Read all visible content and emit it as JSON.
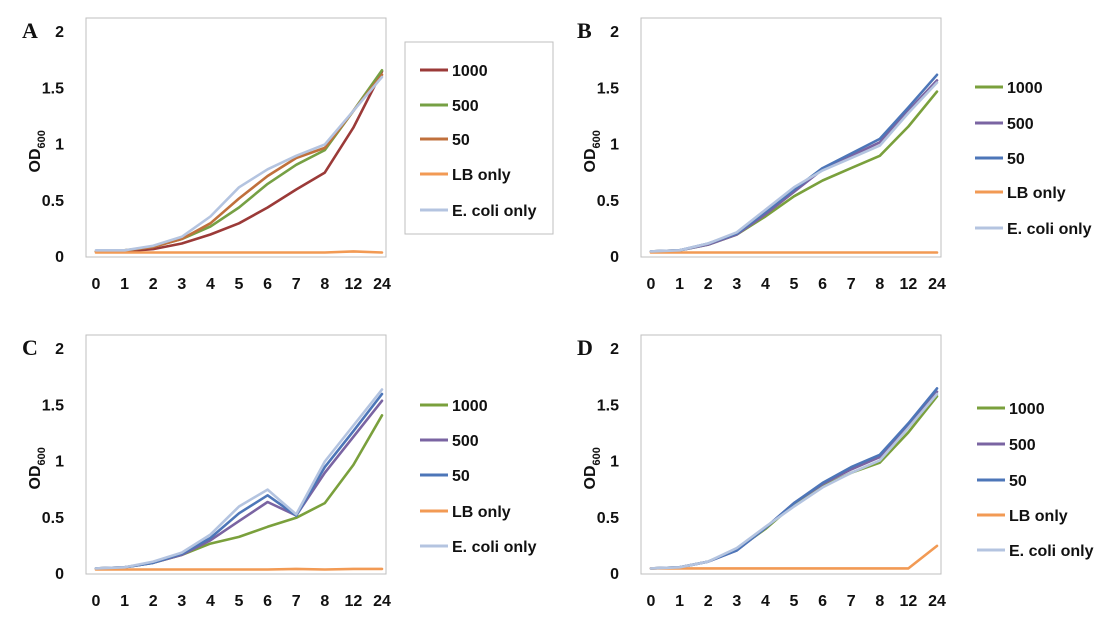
{
  "colors": {
    "1000": "#7aa03c",
    "1000_A": "#9b3a38",
    "500": "#7a64a2",
    "500_A": "#76a044",
    "50": "#4d76b8",
    "50_A": "#c0703c",
    "LB only": "#f29a54",
    "E. coli only": "#b4c4e0",
    "gridline": "#d9d9d9",
    "axis": "#bfbfbf"
  },
  "chart_data": [
    {
      "panel": "A",
      "type": "line",
      "ylabel": "OD600",
      "ylabel_main": "OD",
      "ylabel_sub": "600",
      "categories": [
        "0",
        "1",
        "2",
        "3",
        "4",
        "5",
        "6",
        "7",
        "8",
        "12",
        "24"
      ],
      "yticks": [
        "0",
        "0.5",
        "1",
        "1.5",
        "2"
      ],
      "ylim": [
        0,
        2
      ],
      "grid": false,
      "legend_position": "right",
      "series": [
        {
          "name": "1000",
          "color_key": "1000_A",
          "values": [
            0.05,
            0.05,
            0.07,
            0.12,
            0.2,
            0.3,
            0.44,
            0.6,
            0.75,
            1.15,
            1.65
          ]
        },
        {
          "name": "500",
          "color_key": "500_A",
          "values": [
            0.05,
            0.06,
            0.09,
            0.16,
            0.27,
            0.44,
            0.65,
            0.82,
            0.95,
            1.3,
            1.66
          ]
        },
        {
          "name": "50",
          "color_key": "50_A",
          "values": [
            0.05,
            0.06,
            0.09,
            0.16,
            0.3,
            0.52,
            0.72,
            0.88,
            0.97,
            1.3,
            1.62
          ]
        },
        {
          "name": "LB only",
          "color_key": "LB only",
          "values": [
            0.04,
            0.04,
            0.04,
            0.04,
            0.04,
            0.04,
            0.04,
            0.04,
            0.04,
            0.05,
            0.04
          ]
        },
        {
          "name": "E. coli only",
          "color_key": "E. coli only",
          "values": [
            0.06,
            0.06,
            0.1,
            0.18,
            0.36,
            0.62,
            0.78,
            0.9,
            1.0,
            1.3,
            1.6
          ]
        }
      ]
    },
    {
      "panel": "B",
      "type": "line",
      "ylabel": "OD600",
      "ylabel_main": "OD",
      "ylabel_sub": "600",
      "categories": [
        "0",
        "1",
        "2",
        "3",
        "4",
        "5",
        "6",
        "7",
        "8",
        "12",
        "24"
      ],
      "yticks": [
        "0",
        "0.5",
        "1",
        "1.5",
        "2"
      ],
      "ylim": [
        0,
        2
      ],
      "grid": false,
      "legend_position": "right",
      "series": [
        {
          "name": "1000",
          "color_key": "1000",
          "values": [
            0.05,
            0.06,
            0.11,
            0.2,
            0.36,
            0.54,
            0.68,
            0.79,
            0.9,
            1.16,
            1.47
          ]
        },
        {
          "name": "500",
          "color_key": "500",
          "values": [
            0.05,
            0.06,
            0.11,
            0.2,
            0.38,
            0.58,
            0.78,
            0.9,
            1.02,
            1.3,
            1.57
          ]
        },
        {
          "name": "50",
          "color_key": "50",
          "values": [
            0.05,
            0.06,
            0.12,
            0.21,
            0.4,
            0.6,
            0.79,
            0.92,
            1.05,
            1.33,
            1.62
          ]
        },
        {
          "name": "LB only",
          "color_key": "LB only",
          "values": [
            0.04,
            0.04,
            0.04,
            0.04,
            0.04,
            0.04,
            0.04,
            0.04,
            0.04,
            0.04,
            0.04
          ]
        },
        {
          "name": "E. coli only",
          "color_key": "E. coli only",
          "values": [
            0.05,
            0.06,
            0.12,
            0.22,
            0.42,
            0.62,
            0.77,
            0.88,
            0.99,
            1.28,
            1.55
          ]
        }
      ]
    },
    {
      "panel": "C",
      "type": "line",
      "ylabel": "OD600",
      "ylabel_main": "OD",
      "ylabel_sub": "600",
      "categories": [
        "0",
        "1",
        "2",
        "3",
        "4",
        "5",
        "6",
        "7",
        "8",
        "12",
        "24"
      ],
      "yticks": [
        "0",
        "0.5",
        "1",
        "1.5",
        "2"
      ],
      "ylim": [
        0,
        2
      ],
      "grid": false,
      "legend_position": "right",
      "series": [
        {
          "name": "1000",
          "color_key": "1000",
          "values": [
            0.05,
            0.06,
            0.1,
            0.17,
            0.27,
            0.33,
            0.42,
            0.5,
            0.63,
            0.97,
            1.41
          ]
        },
        {
          "name": "500",
          "color_key": "500",
          "values": [
            0.05,
            0.06,
            0.1,
            0.17,
            0.3,
            0.47,
            0.64,
            0.52,
            0.9,
            1.22,
            1.54
          ]
        },
        {
          "name": "50",
          "color_key": "50",
          "values": [
            0.05,
            0.06,
            0.1,
            0.18,
            0.32,
            0.54,
            0.7,
            0.52,
            0.95,
            1.27,
            1.6
          ]
        },
        {
          "name": "LB only",
          "color_key": "LB only",
          "values": [
            0.04,
            0.04,
            0.04,
            0.04,
            0.04,
            0.04,
            0.04,
            0.045,
            0.04,
            0.045,
            0.045
          ]
        },
        {
          "name": "E. coli only",
          "color_key": "E. coli only",
          "values": [
            0.05,
            0.06,
            0.11,
            0.19,
            0.35,
            0.6,
            0.75,
            0.53,
            1.0,
            1.32,
            1.64
          ]
        }
      ]
    },
    {
      "panel": "D",
      "type": "line",
      "ylabel": "OD600",
      "ylabel_main": "OD",
      "ylabel_sub": "600",
      "categories": [
        "0",
        "1",
        "2",
        "3",
        "4",
        "5",
        "6",
        "7",
        "8",
        "12",
        "24"
      ],
      "yticks": [
        "0",
        "0.5",
        "1",
        "1.5",
        "2"
      ],
      "ylim": [
        0,
        2
      ],
      "grid": false,
      "legend_position": "right",
      "series": [
        {
          "name": "1000",
          "color_key": "1000",
          "values": [
            0.05,
            0.06,
            0.11,
            0.22,
            0.4,
            0.62,
            0.78,
            0.9,
            0.99,
            1.26,
            1.58
          ]
        },
        {
          "name": "500",
          "color_key": "500",
          "values": [
            0.05,
            0.06,
            0.11,
            0.21,
            0.41,
            0.63,
            0.8,
            0.93,
            1.04,
            1.32,
            1.62
          ]
        },
        {
          "name": "50",
          "color_key": "50",
          "values": [
            0.05,
            0.06,
            0.11,
            0.21,
            0.41,
            0.63,
            0.81,
            0.95,
            1.06,
            1.34,
            1.65
          ]
        },
        {
          "name": "LB only",
          "color_key": "LB only",
          "values": [
            0.05,
            0.05,
            0.05,
            0.05,
            0.05,
            0.05,
            0.05,
            0.05,
            0.05,
            0.05,
            0.25
          ]
        },
        {
          "name": "E. coli only",
          "color_key": "E. coli only",
          "values": [
            0.05,
            0.06,
            0.11,
            0.23,
            0.42,
            0.6,
            0.77,
            0.9,
            1.01,
            1.3,
            1.6
          ]
        }
      ]
    }
  ]
}
